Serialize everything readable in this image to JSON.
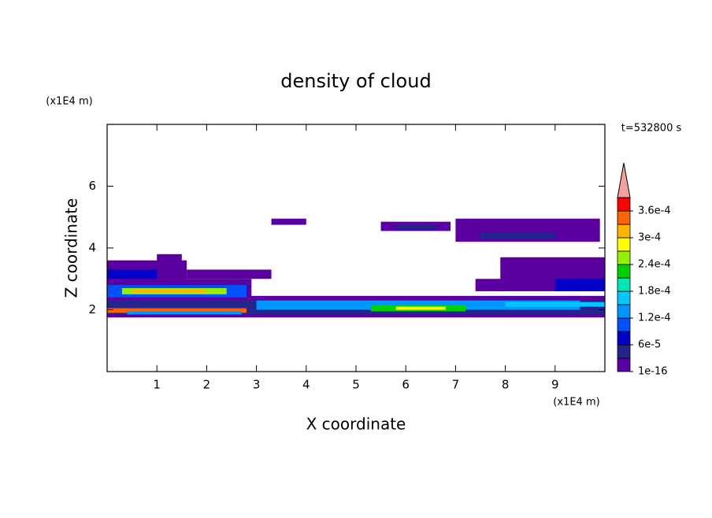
{
  "chart_data": {
    "type": "contour",
    "title": "density of cloud",
    "x_label": "X coordinate",
    "y_label": "Z coordinate",
    "x_unit": "(x1E4 m)",
    "y_unit": "(x1E4 m)",
    "annotation": "t=532800 s",
    "xlim": [
      0,
      10
    ],
    "ylim": [
      0,
      8
    ],
    "xticks": [
      1,
      2,
      3,
      4,
      5,
      6,
      7,
      8,
      9
    ],
    "yticks": [
      2,
      4,
      6
    ],
    "levels": [
      1e-16,
      3e-05,
      6e-05,
      9e-05,
      0.00012,
      0.00015,
      0.00018,
      0.00021,
      0.00024,
      0.00027,
      0.0003,
      0.00033,
      0.00036,
      0.00039
    ],
    "colors": [
      "#5a00a0",
      "#24248c",
      "#0000c8",
      "#0050ff",
      "#0096ff",
      "#00c8ff",
      "#00e6b4",
      "#00d200",
      "#96f000",
      "#ffff00",
      "#ffb400",
      "#ff6400",
      "#ff0000"
    ],
    "extend_color": "#f5a0a0",
    "colorbar_ticks": [
      {
        "value": 1e-16,
        "label": "1e-16"
      },
      {
        "value": 6e-05,
        "label": "6e-5"
      },
      {
        "value": 0.00012,
        "label": "1.2e-4"
      },
      {
        "value": 0.00018,
        "label": "1.8e-4"
      },
      {
        "value": 0.00024,
        "label": "2.4e-4"
      },
      {
        "value": 0.0003,
        "label": "3e-4"
      },
      {
        "value": 0.00036,
        "label": "3.6e-4"
      }
    ],
    "cells": [
      {
        "x": [
          0,
          10
        ],
        "z": [
          1.75,
          2.45
        ],
        "value": 1e-05
      },
      {
        "x": [
          0,
          2.9
        ],
        "z": [
          2.3,
          3.0
        ],
        "value": 1e-05
      },
      {
        "x": [
          0,
          1.6
        ],
        "z": [
          2.9,
          3.6
        ],
        "value": 1e-05
      },
      {
        "x": [
          1.0,
          1.5
        ],
        "z": [
          3.5,
          3.8
        ],
        "value": 1e-05
      },
      {
        "x": [
          1.6,
          3.3
        ],
        "z": [
          3.0,
          3.3
        ],
        "value": 1e-05
      },
      {
        "x": [
          3.3,
          4.0
        ],
        "z": [
          4.75,
          4.95
        ],
        "value": 1e-05
      },
      {
        "x": [
          5.5,
          6.9
        ],
        "z": [
          4.55,
          4.85
        ],
        "value": 1e-05
      },
      {
        "x": [
          7.0,
          9.9
        ],
        "z": [
          4.2,
          4.95
        ],
        "value": 1e-05
      },
      {
        "x": [
          7.9,
          10
        ],
        "z": [
          2.6,
          3.7
        ],
        "value": 1e-05
      },
      {
        "x": [
          7.4,
          8.0
        ],
        "z": [
          2.6,
          3.0
        ],
        "value": 1e-05
      },
      {
        "x": [
          0,
          10
        ],
        "z": [
          1.85,
          2.3
        ],
        "value": 4.5e-05
      },
      {
        "x": [
          0,
          2.8
        ],
        "z": [
          2.4,
          2.8
        ],
        "value": 0.0001
      },
      {
        "x": [
          0,
          2.8
        ],
        "z": [
          1.9,
          2.05
        ],
        "value": 0.00035
      },
      {
        "x": [
          0.3,
          2.4
        ],
        "z": [
          2.5,
          2.7
        ],
        "value": 0.00025
      },
      {
        "x": [
          0.5,
          2.0
        ],
        "z": [
          2.55,
          2.65
        ],
        "value": 0.00031
      },
      {
        "x": [
          3,
          9.5
        ],
        "z": [
          2.0,
          2.3
        ],
        "value": 0.00013
      },
      {
        "x": [
          5.3,
          7.2
        ],
        "z": [
          1.95,
          2.15
        ],
        "value": 0.00022
      },
      {
        "x": [
          5.8,
          6.8
        ],
        "z": [
          2.0,
          2.1
        ],
        "value": 0.00028
      },
      {
        "x": [
          8,
          10
        ],
        "z": [
          2.1,
          2.25
        ],
        "value": 0.00017
      },
      {
        "x": [
          5.8,
          6.6
        ],
        "z": [
          4.6,
          4.75
        ],
        "value": 4e-05
      },
      {
        "x": [
          7.5,
          9.0
        ],
        "z": [
          4.3,
          4.5
        ],
        "value": 4e-05
      },
      {
        "x": [
          9,
          10
        ],
        "z": [
          2.6,
          3.0
        ],
        "value": 7e-05
      },
      {
        "x": [
          0,
          1.0
        ],
        "z": [
          3.0,
          3.3
        ],
        "value": 7e-05
      },
      {
        "x": [
          0.4,
          2.7
        ],
        "z": [
          1.85,
          1.95
        ],
        "value": 0.00014
      }
    ]
  }
}
